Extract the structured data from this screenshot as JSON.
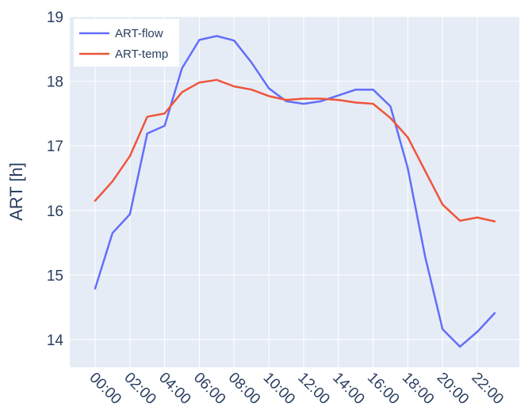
{
  "chart_data": {
    "type": "line",
    "x": [
      "00:00",
      "01:00",
      "02:00",
      "03:00",
      "04:00",
      "05:00",
      "06:00",
      "07:00",
      "08:00",
      "09:00",
      "10:00",
      "11:00",
      "12:00",
      "13:00",
      "14:00",
      "15:00",
      "16:00",
      "17:00",
      "18:00",
      "19:00",
      "20:00",
      "21:00",
      "22:00",
      "23:00"
    ],
    "xticks": [
      "00:00",
      "02:00",
      "04:00",
      "06:00",
      "08:00",
      "10:00",
      "12:00",
      "14:00",
      "16:00",
      "18:00",
      "20:00",
      "22:00"
    ],
    "ylabel": "ART [h]",
    "xlabel": "",
    "ylim": [
      13.57,
      19
    ],
    "yticks": [
      14,
      15,
      16,
      17,
      18,
      19
    ],
    "grid": true,
    "legend_position": "top-left",
    "series": [
      {
        "name": "ART-flow",
        "color": "#636efa",
        "values": [
          14.79,
          15.65,
          15.94,
          17.19,
          17.31,
          18.2,
          18.64,
          18.7,
          18.63,
          18.29,
          17.89,
          17.69,
          17.65,
          17.69,
          17.78,
          17.87,
          17.87,
          17.61,
          16.65,
          15.28,
          14.16,
          13.89,
          14.12,
          14.41
        ]
      },
      {
        "name": "ART-temp",
        "color": "#ef553b",
        "values": [
          16.15,
          16.45,
          16.84,
          17.45,
          17.5,
          17.83,
          17.98,
          18.02,
          17.92,
          17.87,
          17.77,
          17.71,
          17.73,
          17.73,
          17.71,
          17.67,
          17.65,
          17.43,
          17.13,
          16.61,
          16.09,
          15.84,
          15.89,
          15.83
        ]
      }
    ]
  }
}
